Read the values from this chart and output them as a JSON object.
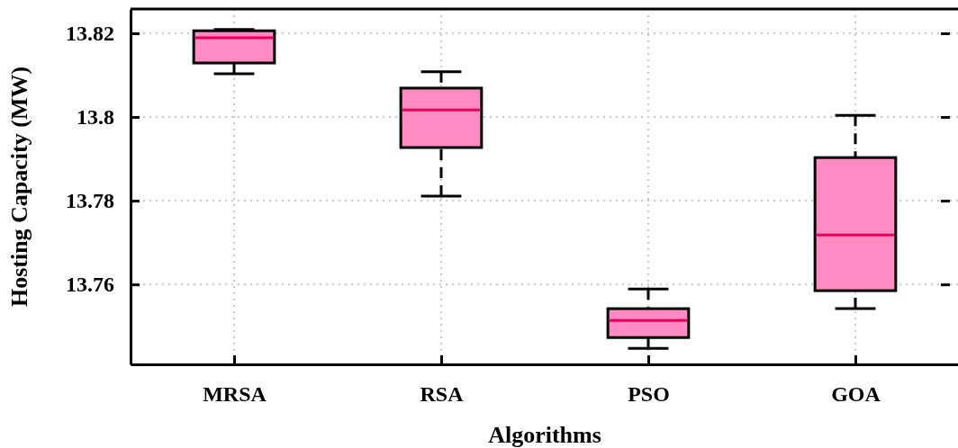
{
  "chart_data": {
    "type": "box",
    "xlabel": "Algorithms",
    "ylabel": "Hosting Capacity (MW)",
    "categories": [
      "MRSA",
      "RSA",
      "PSO",
      "GOA"
    ],
    "color": "#ff8ac4",
    "boxes": [
      {
        "low": 13.8103,
        "q1": 13.8129,
        "median": 13.8189,
        "q3": 13.8206,
        "high": 13.8209
      },
      {
        "low": 13.7811,
        "q1": 13.7927,
        "median": 13.8017,
        "q3": 13.8069,
        "high": 13.8108
      },
      {
        "low": 13.7447,
        "q1": 13.7473,
        "median": 13.7514,
        "q3": 13.7542,
        "high": 13.7589
      },
      {
        "low": 13.7542,
        "q1": 13.7585,
        "median": 13.7718,
        "q3": 13.7903,
        "high": 13.8004
      }
    ],
    "ylim": [
      13.7409,
      13.8258
    ],
    "yticks": [
      13.76,
      13.78,
      13.8,
      13.82
    ],
    "grid": true
  }
}
